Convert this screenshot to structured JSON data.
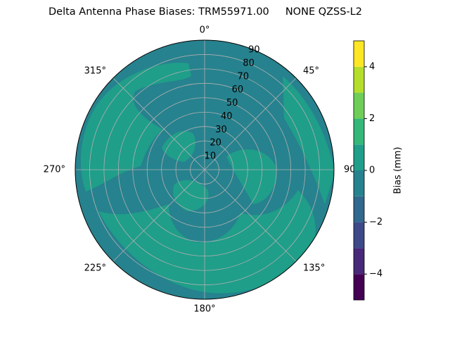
{
  "chart_data": {
    "type": "polar_contour",
    "title": "Delta Antenna Phase Biases: TRM55971.00     NONE QZSS-L2",
    "theta_ticks": [
      {
        "value": 0,
        "label": "0°"
      },
      {
        "value": 45,
        "label": "45°"
      },
      {
        "value": 90,
        "label": "90"
      },
      {
        "value": 135,
        "label": "135°"
      },
      {
        "value": 180,
        "label": "180°"
      },
      {
        "value": 225,
        "label": "225°"
      },
      {
        "value": 270,
        "label": "270°"
      },
      {
        "value": 315,
        "label": "315°"
      }
    ],
    "rlim": [
      0,
      90
    ],
    "rticks": [
      10,
      20,
      30,
      40,
      50,
      60,
      70,
      80,
      90
    ],
    "grid": true,
    "levels": [
      -5,
      -4,
      -3,
      -2,
      -1,
      0,
      1,
      2,
      3,
      4,
      5
    ],
    "level_colors": [
      "#440154",
      "#482878",
      "#3e4989",
      "#31688e",
      "#26828e",
      "#1f9e89",
      "#35b779",
      "#6ece58",
      "#b5de2b",
      "#fde725"
    ],
    "colorbar": {
      "label": "Bias (mm)",
      "lim": [
        -5,
        5
      ],
      "ticks": [
        {
          "value": -4,
          "label": "−4"
        },
        {
          "value": -2,
          "label": "−2"
        },
        0,
        2,
        4
      ]
    }
  }
}
